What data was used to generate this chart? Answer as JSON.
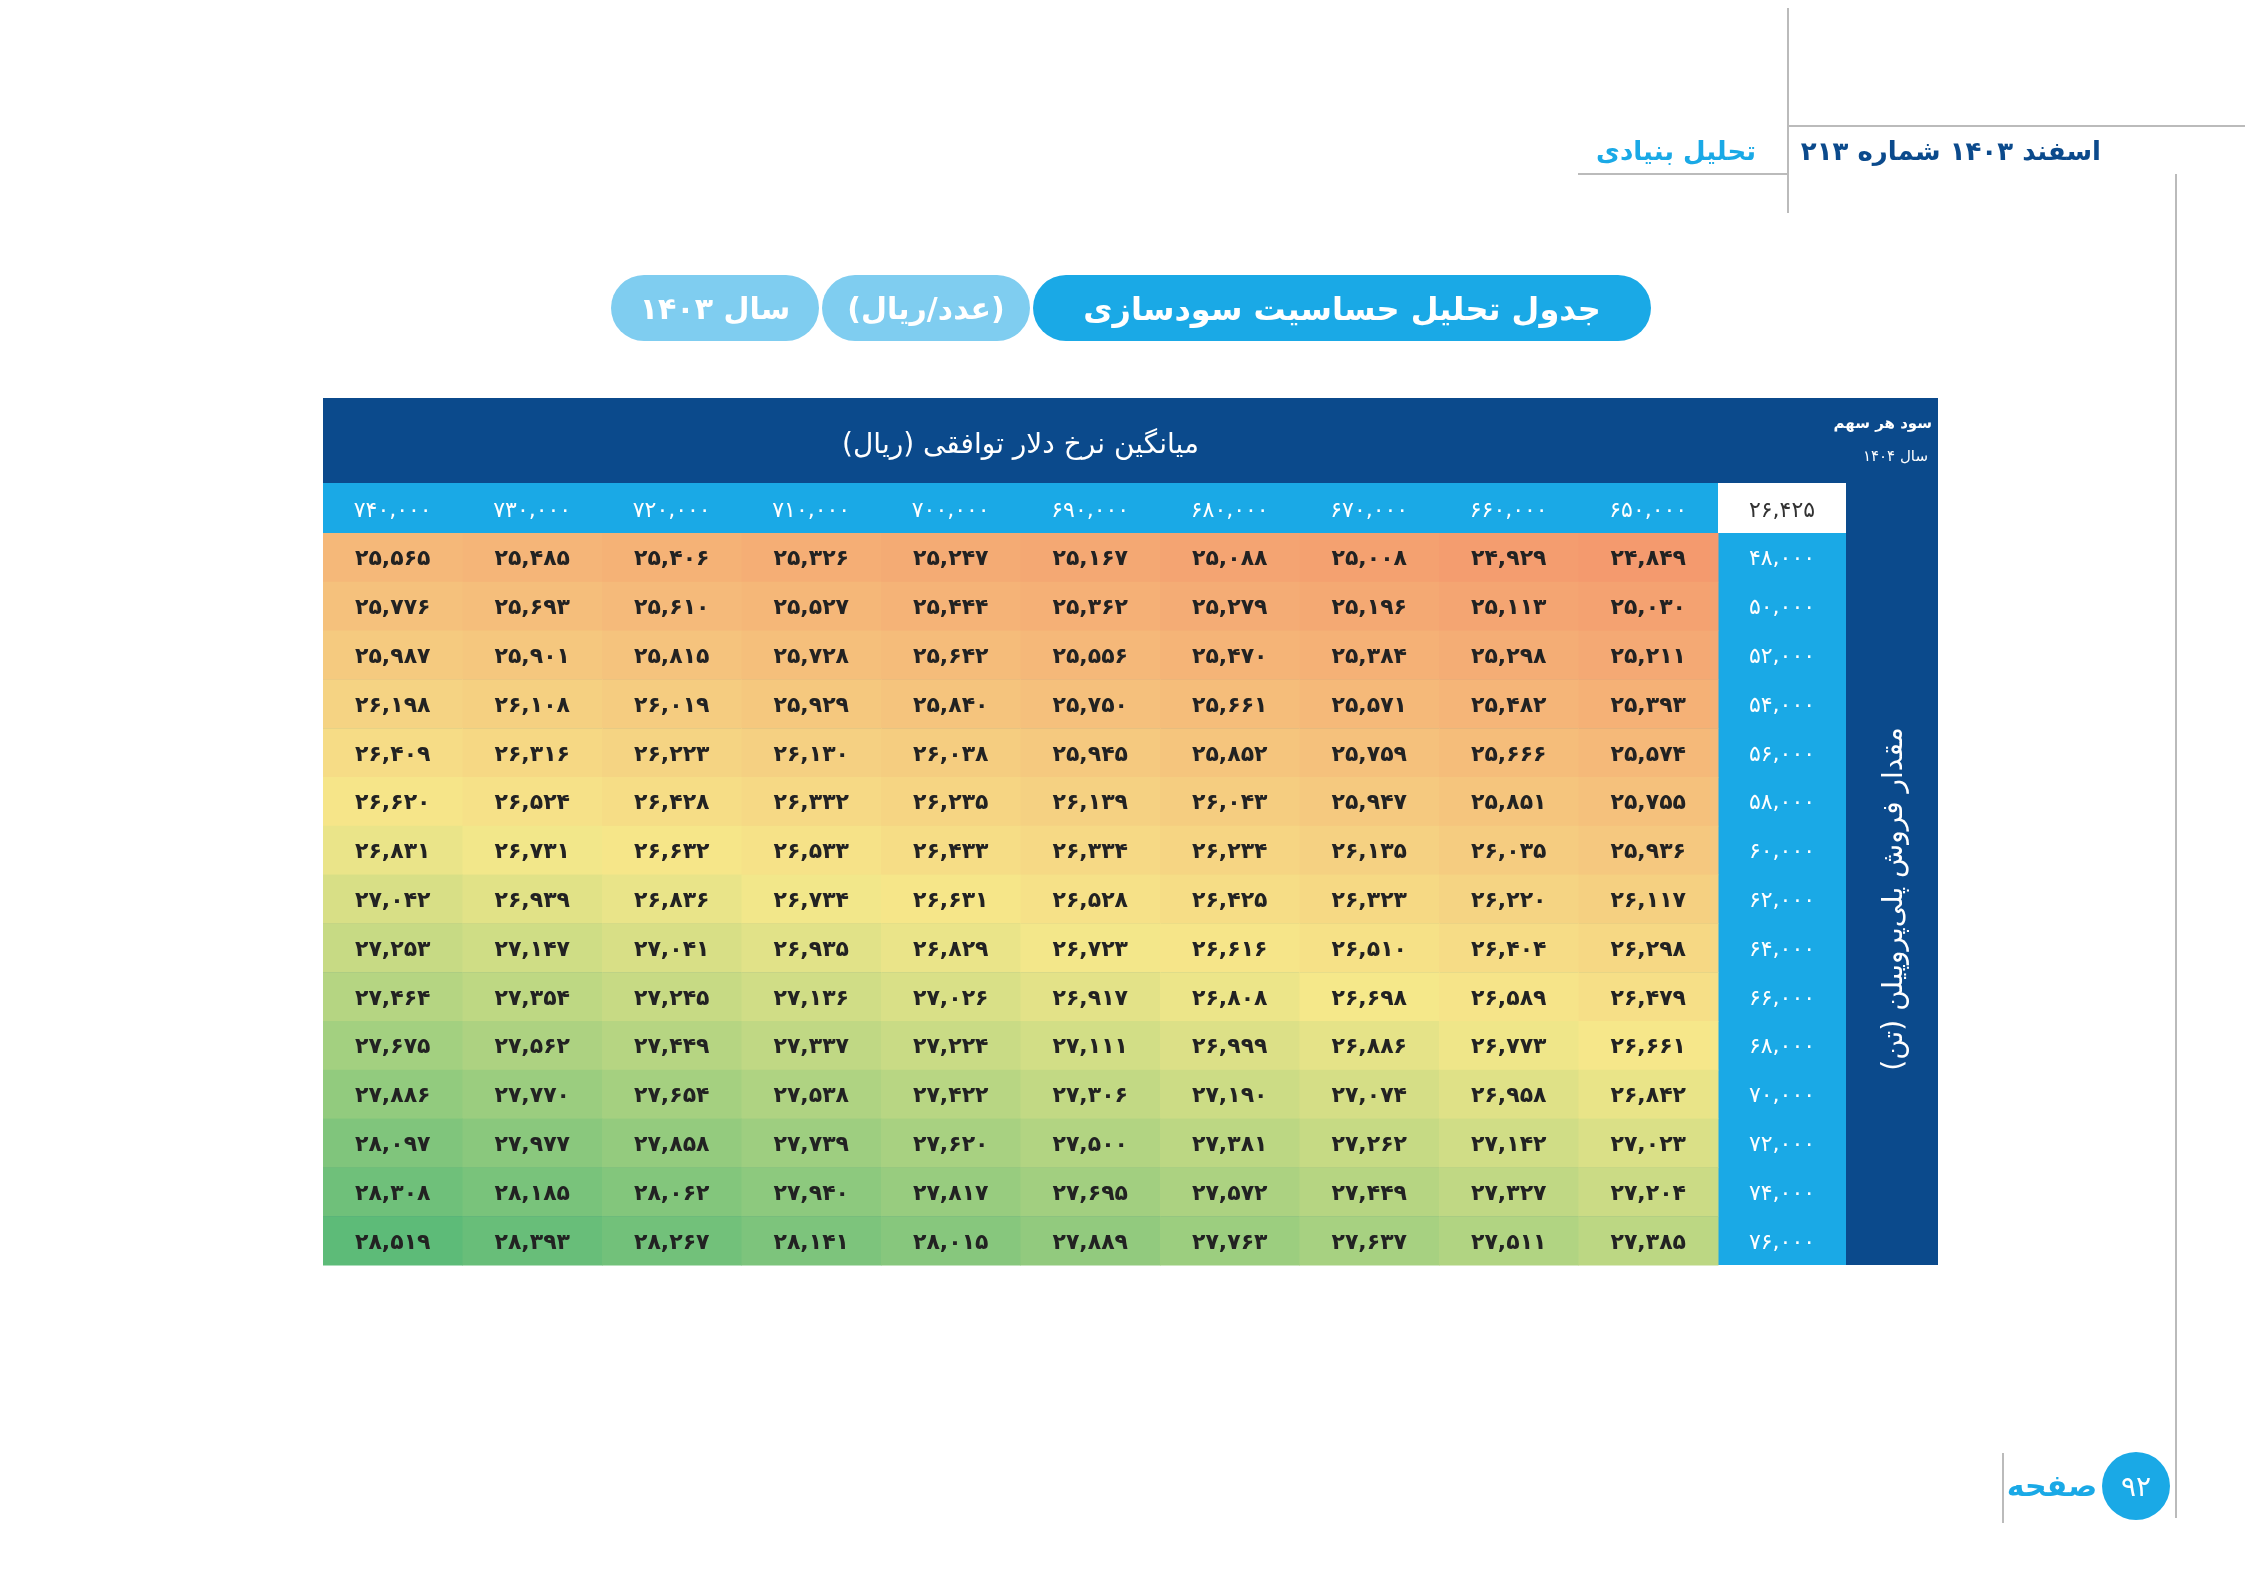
{
  "chart_data": {
    "type": "heatmap",
    "title": "جدول تحلیل حساسیت سودسازی",
    "subtitle": "(عدد/ریال)  سال ۱۴۰۳",
    "xlabel": "میانگین نرخ دلار توافقی (ریال)",
    "ylabel": "مقدار فروش پلی‌پروپیلن (تن)",
    "categories": [
      "۷۴۰,۰۰۰",
      "۷۳۰,۰۰۰",
      "۷۲۰,۰۰۰",
      "۷۱۰,۰۰۰",
      "۷۰۰,۰۰۰",
      "۶۹۰,۰۰۰",
      "۶۸۰,۰۰۰",
      "۶۷۰,۰۰۰",
      "۶۶۰,۰۰۰",
      "۶۵۰,۰۰۰"
    ],
    "y_categories": [
      "۴۸,۰۰۰",
      "۵۰,۰۰۰",
      "۵۲,۰۰۰",
      "۵۴,۰۰۰",
      "۵۶,۰۰۰",
      "۵۸,۰۰۰",
      "۶۰,۰۰۰",
      "۶۲,۰۰۰",
      "۶۴,۰۰۰",
      "۶۶,۰۰۰",
      "۶۸,۰۰۰",
      "۷۰,۰۰۰",
      "۷۲,۰۰۰",
      "۷۴,۰۰۰",
      "۷۶,۰۰۰"
    ],
    "cells": [
      [
        25565,
        25485,
        25406,
        25326,
        25247,
        25167,
        25088,
        25008,
        24929,
        24849
      ],
      [
        25776,
        25693,
        25610,
        25527,
        25444,
        25362,
        25279,
        25196,
        25113,
        25030
      ],
      [
        25987,
        25901,
        25815,
        25728,
        25642,
        25556,
        25470,
        25384,
        25298,
        25211
      ],
      [
        26198,
        26108,
        26019,
        25929,
        25840,
        25750,
        25661,
        25571,
        25482,
        25393
      ],
      [
        26409,
        26316,
        26223,
        26130,
        26038,
        25945,
        25852,
        25759,
        25666,
        25574
      ],
      [
        26620,
        26524,
        26428,
        26332,
        26235,
        26139,
        26043,
        25947,
        25851,
        25755
      ],
      [
        26831,
        26731,
        26632,
        26533,
        26433,
        26334,
        26234,
        26135,
        26035,
        25936
      ],
      [
        27042,
        26939,
        26836,
        26734,
        26631,
        26528,
        26425,
        26323,
        26220,
        26117
      ],
      [
        27253,
        27147,
        27041,
        26935,
        26829,
        26723,
        26616,
        26510,
        26404,
        26298
      ],
      [
        27464,
        27354,
        27245,
        27136,
        27026,
        26917,
        26808,
        26698,
        26589,
        26479
      ],
      [
        27675,
        27562,
        27449,
        27337,
        27224,
        27111,
        26999,
        26886,
        26773,
        26661
      ],
      [
        27886,
        27770,
        27654,
        27538,
        27422,
        27306,
        27190,
        27074,
        26958,
        26842
      ],
      [
        28097,
        27977,
        27858,
        27739,
        27620,
        27500,
        27381,
        27262,
        27142,
        27023
      ],
      [
        28308,
        28185,
        28062,
        27940,
        27817,
        27695,
        27572,
        27449,
        27327,
        27204
      ],
      [
        28519,
        28393,
        28267,
        28141,
        28015,
        27889,
        27763,
        27637,
        27511,
        27385
      ]
    ],
    "cell_labels": [
      [
        "۲۵,۵۶۵",
        "۲۵,۴۸۵",
        "۲۵,۴۰۶",
        "۲۵,۳۲۶",
        "۲۵,۲۴۷",
        "۲۵,۱۶۷",
        "۲۵,۰۸۸",
        "۲۵,۰۰۸",
        "۲۴,۹۲۹",
        "۲۴,۸۴۹"
      ],
      [
        "۲۵,۷۷۶",
        "۲۵,۶۹۳",
        "۲۵,۶۱۰",
        "۲۵,۵۲۷",
        "۲۵,۴۴۴",
        "۲۵,۳۶۲",
        "۲۵,۲۷۹",
        "۲۵,۱۹۶",
        "۲۵,۱۱۳",
        "۲۵,۰۳۰"
      ],
      [
        "۲۵,۹۸۷",
        "۲۵,۹۰۱",
        "۲۵,۸۱۵",
        "۲۵,۷۲۸",
        "۲۵,۶۴۲",
        "۲۵,۵۵۶",
        "۲۵,۴۷۰",
        "۲۵,۳۸۴",
        "۲۵,۲۹۸",
        "۲۵,۲۱۱"
      ],
      [
        "۲۶,۱۹۸",
        "۲۶,۱۰۸",
        "۲۶,۰۱۹",
        "۲۵,۹۲۹",
        "۲۵,۸۴۰",
        "۲۵,۷۵۰",
        "۲۵,۶۶۱",
        "۲۵,۵۷۱",
        "۲۵,۴۸۲",
        "۲۵,۳۹۳"
      ],
      [
        "۲۶,۴۰۹",
        "۲۶,۳۱۶",
        "۲۶,۲۲۳",
        "۲۶,۱۳۰",
        "۲۶,۰۳۸",
        "۲۵,۹۴۵",
        "۲۵,۸۵۲",
        "۲۵,۷۵۹",
        "۲۵,۶۶۶",
        "۲۵,۵۷۴"
      ],
      [
        "۲۶,۶۲۰",
        "۲۶,۵۲۴",
        "۲۶,۴۲۸",
        "۲۶,۳۳۲",
        "۲۶,۲۳۵",
        "۲۶,۱۳۹",
        "۲۶,۰۴۳",
        "۲۵,۹۴۷",
        "۲۵,۸۵۱",
        "۲۵,۷۵۵"
      ],
      [
        "۲۶,۸۳۱",
        "۲۶,۷۳۱",
        "۲۶,۶۳۲",
        "۲۶,۵۳۳",
        "۲۶,۴۳۳",
        "۲۶,۳۳۴",
        "۲۶,۲۳۴",
        "۲۶,۱۳۵",
        "۲۶,۰۳۵",
        "۲۵,۹۳۶"
      ],
      [
        "۲۷,۰۴۲",
        "۲۶,۹۳۹",
        "۲۶,۸۳۶",
        "۲۶,۷۳۴",
        "۲۶,۶۳۱",
        "۲۶,۵۲۸",
        "۲۶,۴۲۵",
        "۲۶,۳۲۳",
        "۲۶,۲۲۰",
        "۲۶,۱۱۷"
      ],
      [
        "۲۷,۲۵۳",
        "۲۷,۱۴۷",
        "۲۷,۰۴۱",
        "۲۶,۹۳۵",
        "۲۶,۸۲۹",
        "۲۶,۷۲۳",
        "۲۶,۶۱۶",
        "۲۶,۵۱۰",
        "۲۶,۴۰۴",
        "۲۶,۲۹۸"
      ],
      [
        "۲۷,۴۶۴",
        "۲۷,۳۵۴",
        "۲۷,۲۴۵",
        "۲۷,۱۳۶",
        "۲۷,۰۲۶",
        "۲۶,۹۱۷",
        "۲۶,۸۰۸",
        "۲۶,۶۹۸",
        "۲۶,۵۸۹",
        "۲۶,۴۷۹"
      ],
      [
        "۲۷,۶۷۵",
        "۲۷,۵۶۲",
        "۲۷,۴۴۹",
        "۲۷,۳۳۷",
        "۲۷,۲۲۴",
        "۲۷,۱۱۱",
        "۲۶,۹۹۹",
        "۲۶,۸۸۶",
        "۲۶,۷۷۳",
        "۲۶,۶۶۱"
      ],
      [
        "۲۷,۸۸۶",
        "۲۷,۷۷۰",
        "۲۷,۶۵۴",
        "۲۷,۵۳۸",
        "۲۷,۴۲۲",
        "۲۷,۳۰۶",
        "۲۷,۱۹۰",
        "۲۷,۰۷۴",
        "۲۶,۹۵۸",
        "۲۶,۸۴۲"
      ],
      [
        "۲۸,۰۹۷",
        "۲۷,۹۷۷",
        "۲۷,۸۵۸",
        "۲۷,۷۳۹",
        "۲۷,۶۲۰",
        "۲۷,۵۰۰",
        "۲۷,۳۸۱",
        "۲۷,۲۶۲",
        "۲۷,۱۴۲",
        "۲۷,۰۲۳"
      ],
      [
        "۲۸,۳۰۸",
        "۲۸,۱۸۵",
        "۲۸,۰۶۲",
        "۲۷,۹۴۰",
        "۲۷,۸۱۷",
        "۲۷,۶۹۵",
        "۲۷,۵۷۲",
        "۲۷,۴۴۹",
        "۲۷,۳۲۷",
        "۲۷,۲۰۴"
      ],
      [
        "۲۸,۵۱۹",
        "۲۸,۳۹۳",
        "۲۸,۲۶۷",
        "۲۸,۱۴۱",
        "۲۸,۰۱۵",
        "۲۷,۸۸۹",
        "۲۷,۷۶۳",
        "۲۷,۶۳۷",
        "۲۷,۵۱۱",
        "۲۷,۳۸۵"
      ]
    ],
    "annotations": [
      "۲۶,۴۲۵",
      "سود هر سهم",
      "سال ۱۴۰۴",
      "اسفند ۱۴۰۳    شماره ۲۱۳",
      "تحلیل بنیادی",
      "صفحه",
      "۹۲"
    ]
  }
}
